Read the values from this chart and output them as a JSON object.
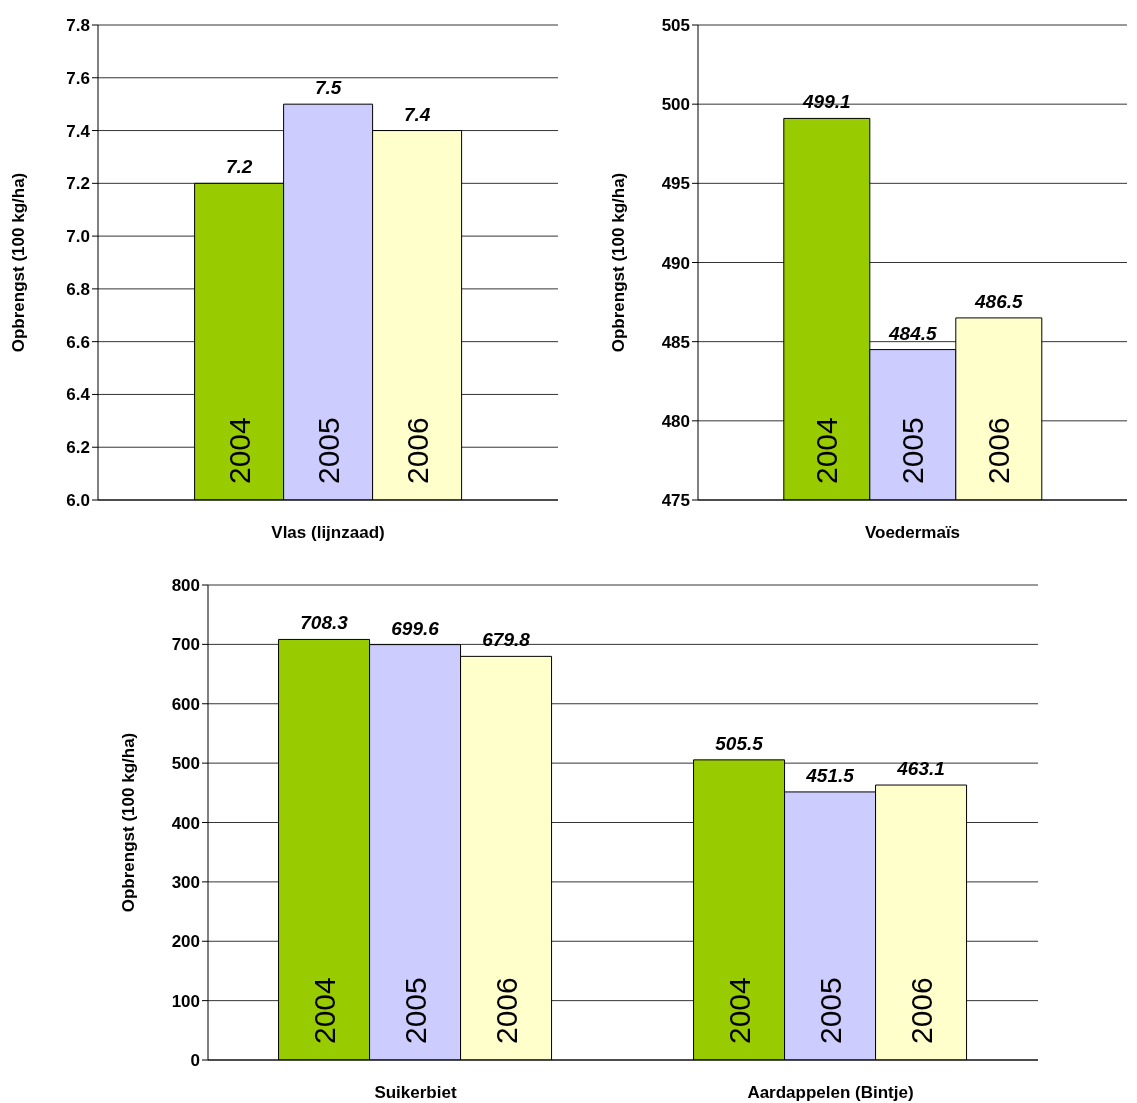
{
  "chart_data": [
    {
      "type": "bar",
      "categories": [
        "Vlas (lijnzaad)"
      ],
      "ylabel": "Opbrengst (100 kg/ha)",
      "ylim": [
        6,
        7.8
      ],
      "yticks": [
        {
          "value": 6,
          "label": "6.0"
        },
        {
          "value": 6.2,
          "label": "6.2"
        },
        {
          "value": 6.4,
          "label": "6.4"
        },
        {
          "value": 6.6,
          "label": "6.6"
        },
        {
          "value": 6.8,
          "label": "6.8"
        },
        {
          "value": 7,
          "label": "7.0"
        },
        {
          "value": 7.2,
          "label": "7.2"
        },
        {
          "value": 7.4,
          "label": "7.4"
        },
        {
          "value": 7.6,
          "label": "7.6"
        },
        {
          "value": 7.8,
          "label": "7.8"
        }
      ],
      "grid": "y",
      "data_labels": true,
      "series": [
        {
          "name": "2004",
          "color": "#99cc00",
          "values": [
            7.2
          ]
        },
        {
          "name": "2005",
          "color": "#ccccff",
          "values": [
            7.5
          ]
        },
        {
          "name": "2006",
          "color": "#ffffcc",
          "values": [
            7.4
          ]
        }
      ]
    },
    {
      "type": "bar",
      "categories": [
        "Voedermaïs"
      ],
      "ylabel": "Opbrengst (100 kg/ha)",
      "ylim": [
        475,
        505
      ],
      "yticks": [
        475,
        480,
        485,
        490,
        495,
        500,
        505
      ],
      "grid": "y",
      "data_labels": true,
      "series": [
        {
          "name": "2004",
          "color": "#99cc00",
          "values": [
            499.1
          ]
        },
        {
          "name": "2005",
          "color": "#ccccff",
          "values": [
            484.5
          ]
        },
        {
          "name": "2006",
          "color": "#ffffcc",
          "values": [
            486.5
          ]
        }
      ]
    },
    {
      "type": "bar",
      "categories": [
        "Suikerbiet",
        "Aardappelen (Bintje)"
      ],
      "ylabel": "Opbrengst (100 kg/ha)",
      "ylim": [
        0,
        800
      ],
      "yticks": [
        0,
        100,
        200,
        300,
        400,
        500,
        600,
        700,
        800
      ],
      "grid": "y",
      "data_labels": true,
      "series": [
        {
          "name": "2004",
          "color": "#99cc00",
          "values": [
            708.3,
            505.5
          ]
        },
        {
          "name": "2005",
          "color": "#ccccff",
          "values": [
            699.6,
            451.5
          ]
        },
        {
          "name": "2006",
          "color": "#ffffcc",
          "values": [
            679.8,
            463.1
          ]
        }
      ]
    }
  ]
}
